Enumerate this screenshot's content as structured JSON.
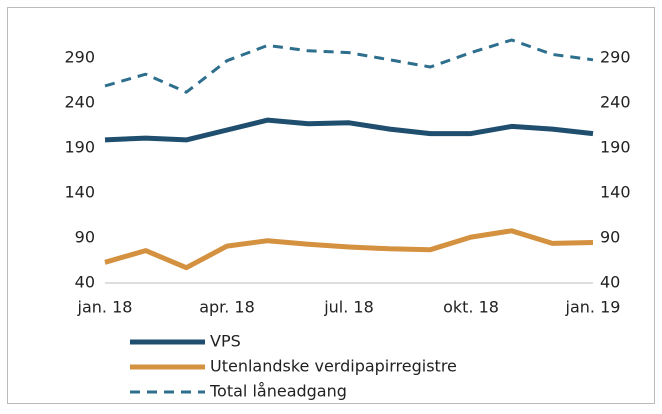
{
  "chart_data": {
    "type": "line",
    "categories": [
      "jan. 18",
      null,
      null,
      "apr. 18",
      null,
      null,
      "jul. 18",
      null,
      null,
      "okt. 18",
      null,
      null,
      "jan. 19"
    ],
    "series": [
      {
        "name": "VPS",
        "color": "#1f4e6e",
        "dash": false,
        "values": [
          199,
          201,
          199,
          210,
          221,
          217,
          218,
          211,
          206,
          206,
          214,
          211,
          206
        ]
      },
      {
        "name": "Utenlandske verdipapirregistre",
        "color": "#d4913f",
        "dash": false,
        "values": [
          63,
          76,
          57,
          81,
          87,
          83,
          80,
          78,
          77,
          91,
          98,
          84,
          85
        ]
      },
      {
        "name": "Total låneadgang",
        "color": "#2e6f8e",
        "dash": true,
        "values": [
          259,
          272,
          252,
          287,
          304,
          298,
          296,
          288,
          280,
          296,
          310,
          294,
          288
        ]
      }
    ],
    "ylim": [
      40,
      290
    ],
    "yticks": [
      40,
      90,
      140,
      190,
      240,
      290
    ],
    "y2lim": [
      40,
      290
    ],
    "y2ticks": [
      40,
      90,
      140,
      190,
      240,
      290
    ]
  }
}
